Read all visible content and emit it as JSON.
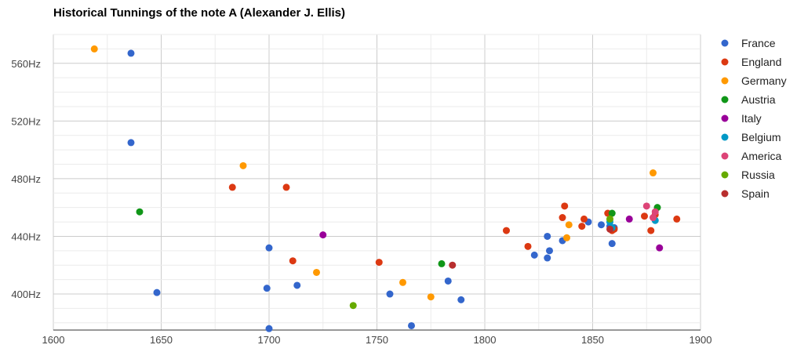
{
  "chart_data": {
    "type": "scatter",
    "title": "Historical Tunnings of the note A (Alexander J. Ellis)",
    "xlabel": "",
    "ylabel": "",
    "xlim": [
      1600,
      1900
    ],
    "ylim": [
      375,
      580
    ],
    "x_ticks": [
      1600,
      1650,
      1700,
      1750,
      1800,
      1850,
      1900
    ],
    "y_ticks": [
      400,
      440,
      480,
      520,
      560
    ],
    "y_tick_suffix": "Hz",
    "grid": true,
    "legend_position": "right",
    "series": [
      {
        "name": "France",
        "color": "#3366cc",
        "points": [
          [
            1636,
            567
          ],
          [
            1636,
            505
          ],
          [
            1648,
            401
          ],
          [
            1699,
            404
          ],
          [
            1700,
            432
          ],
          [
            1700,
            376
          ],
          [
            1713,
            406
          ],
          [
            1756,
            400
          ],
          [
            1766,
            378
          ],
          [
            1783,
            409
          ],
          [
            1789,
            396
          ],
          [
            1823,
            427
          ],
          [
            1829,
            440
          ],
          [
            1829,
            425
          ],
          [
            1830,
            430
          ],
          [
            1836,
            437
          ],
          [
            1848,
            450
          ],
          [
            1854,
            448
          ],
          [
            1858,
            447
          ],
          [
            1859,
            435
          ],
          [
            1860,
            446
          ]
        ]
      },
      {
        "name": "England",
        "color": "#dc3912",
        "points": [
          [
            1683,
            474
          ],
          [
            1708,
            474
          ],
          [
            1711,
            423
          ],
          [
            1751,
            422
          ],
          [
            1810,
            444
          ],
          [
            1820,
            433
          ],
          [
            1836,
            453
          ],
          [
            1837,
            461
          ],
          [
            1845,
            447
          ],
          [
            1846,
            452
          ],
          [
            1857,
            456
          ],
          [
            1859,
            444
          ],
          [
            1860,
            445
          ],
          [
            1874,
            454
          ],
          [
            1877,
            444
          ],
          [
            1879,
            455
          ],
          [
            1889,
            452
          ]
        ]
      },
      {
        "name": "Germany",
        "color": "#ff9900",
        "points": [
          [
            1619,
            570
          ],
          [
            1688,
            489
          ],
          [
            1722,
            415
          ],
          [
            1762,
            408
          ],
          [
            1775,
            398
          ],
          [
            1838,
            439
          ],
          [
            1839,
            448
          ],
          [
            1878,
            484
          ],
          [
            1858,
            452
          ]
        ]
      },
      {
        "name": "Austria",
        "color": "#109618",
        "points": [
          [
            1640,
            457
          ],
          [
            1780,
            421
          ],
          [
            1859,
            456
          ],
          [
            1880,
            460
          ]
        ]
      },
      {
        "name": "Italy",
        "color": "#990099",
        "points": [
          [
            1725,
            441
          ],
          [
            1867,
            452
          ],
          [
            1881,
            432
          ]
        ]
      },
      {
        "name": "Belgium",
        "color": "#0099c6",
        "points": [
          [
            1858,
            450
          ],
          [
            1859,
            446
          ],
          [
            1879,
            451
          ]
        ]
      },
      {
        "name": "America",
        "color": "#dd4477",
        "points": [
          [
            1875,
            461
          ],
          [
            1878,
            453
          ],
          [
            1879,
            457
          ]
        ]
      },
      {
        "name": "Russia",
        "color": "#66aa00",
        "points": [
          [
            1739,
            392
          ],
          [
            1858,
            452
          ]
        ]
      },
      {
        "name": "Spain",
        "color": "#b82e2e",
        "points": [
          [
            1785,
            420
          ],
          [
            1858,
            445
          ]
        ]
      }
    ]
  }
}
